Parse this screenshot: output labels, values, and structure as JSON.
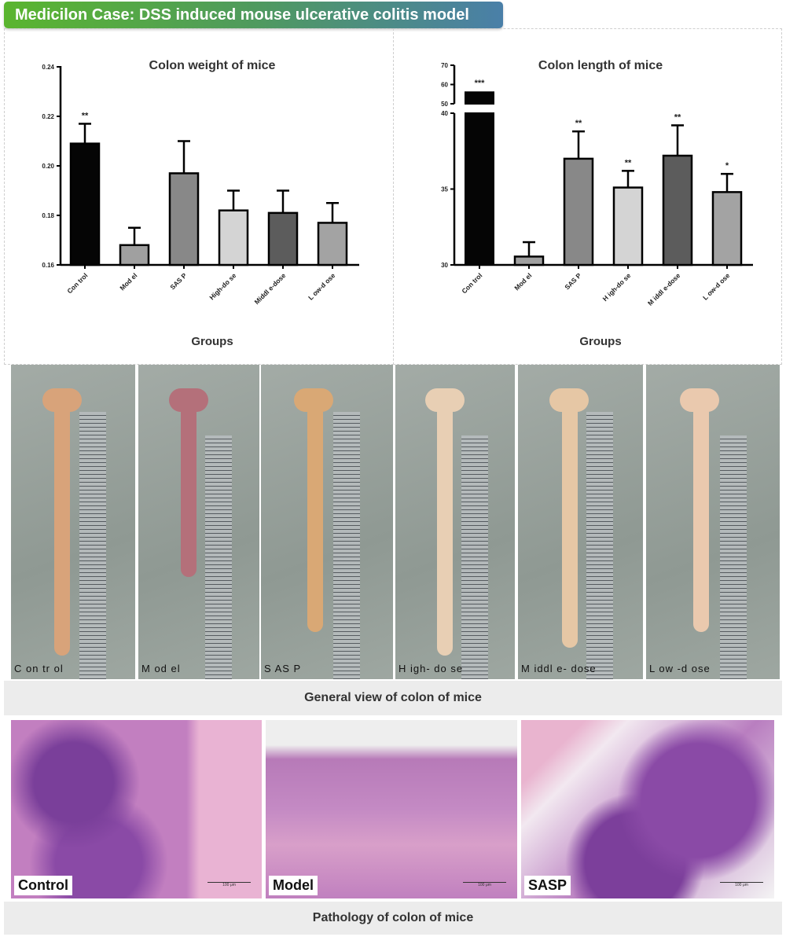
{
  "banner": {
    "title": "Medicilon Case: DSS induced mouse ulcerative colitis model"
  },
  "chart_data": [
    {
      "type": "bar",
      "title": "Colon weight of mice",
      "xlabel": "Groups",
      "ylabel": "",
      "categories": [
        "Con trol",
        "Mod el",
        "SAS P",
        "High-do se",
        "Middl e-dose",
        "L ow-d ose"
      ],
      "values": [
        0.209,
        0.168,
        0.197,
        0.182,
        0.181,
        0.177
      ],
      "error_upper": [
        0.217,
        0.175,
        0.21,
        0.19,
        0.19,
        0.185
      ],
      "significance": [
        "**",
        "",
        "",
        "",
        "",
        ""
      ],
      "bar_colors": [
        "#050505",
        "#a0a0a0",
        "#888888",
        "#d4d4d4",
        "#5c5c5c",
        "#a3a3a3"
      ],
      "ylim": [
        0.16,
        0.24
      ],
      "yticks": [
        "0.16",
        "0.18",
        "0.20",
        "0.22",
        "0.24"
      ],
      "grid": false
    },
    {
      "type": "bar",
      "title": "Colon length of mice",
      "xlabel": "Groups",
      "ylabel": "",
      "categories": [
        "Con trol",
        "Mod el",
        "SAS P",
        "H igh-do se",
        "M iddl e-dose",
        "L ow-d ose"
      ],
      "values": [
        56,
        30.55,
        37.0,
        35.1,
        37.2,
        34.8
      ],
      "error_upper": [
        57,
        31.5,
        38.8,
        36.2,
        39.2,
        36.0
      ],
      "significance": [
        "***",
        "",
        "**",
        "**",
        "**",
        "*"
      ],
      "bar_colors": [
        "#050505",
        "#a0a0a0",
        "#888888",
        "#d4d4d4",
        "#5c5c5c",
        "#a3a3a3"
      ],
      "ylim": [
        30,
        70
      ],
      "axis_break": [
        40,
        50
      ],
      "yticks": [
        "30",
        "35",
        "40",
        "50",
        "60",
        "70"
      ],
      "grid": false
    }
  ],
  "photos": {
    "labels": [
      "C on tr ol",
      "M od el",
      "S AS P",
      "H igh- do se",
      "M iddl e- dose",
      "L ow -d ose"
    ],
    "caption": "General view of colon of mice"
  },
  "pathology": {
    "labels": [
      "Control",
      "Model",
      "SASP"
    ],
    "scale_bar": "100 μm",
    "caption": "Pathology of colon of mice"
  }
}
